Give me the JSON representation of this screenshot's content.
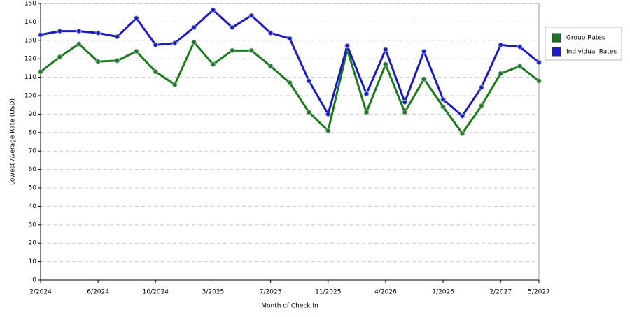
{
  "chart_data": {
    "type": "line",
    "x_label": "Month of Check In",
    "y_label": "Lowest Average Rate (USD)",
    "categories": [
      "2/2024",
      null,
      null,
      "6/2024",
      null,
      null,
      "10/2024",
      null,
      null,
      "3/2025",
      null,
      null,
      "7/2025",
      null,
      null,
      "11/2025",
      null,
      null,
      "4/2026",
      null,
      null,
      "7/2026",
      null,
      null,
      "2/2027",
      null,
      "5/2027"
    ],
    "series": [
      {
        "name": "Group Rates",
        "color": "#1a7a1a",
        "values": [
          113,
          121,
          128,
          118.5,
          119,
          124,
          113,
          106,
          129,
          117,
          124.5,
          124.5,
          116,
          107,
          91,
          81,
          125,
          91,
          117,
          91,
          109,
          94,
          79.5,
          94.5,
          112,
          116,
          108
        ]
      },
      {
        "name": "Individual Rates",
        "color": "#1a1acc",
        "values": [
          133,
          135,
          135,
          134,
          132,
          142,
          127.5,
          128.5,
          137,
          146.5,
          137,
          143.5,
          134,
          131,
          108,
          90,
          127,
          101,
          125,
          96.5,
          124,
          98,
          89,
          104.5,
          127.5,
          126.5,
          118
        ]
      }
    ],
    "ylim": [
      0,
      150
    ],
    "yticks": [
      0,
      10,
      20,
      30,
      40,
      50,
      60,
      70,
      80,
      90,
      100,
      110,
      120,
      130,
      140,
      150
    ],
    "grid": true,
    "legend": "right"
  }
}
